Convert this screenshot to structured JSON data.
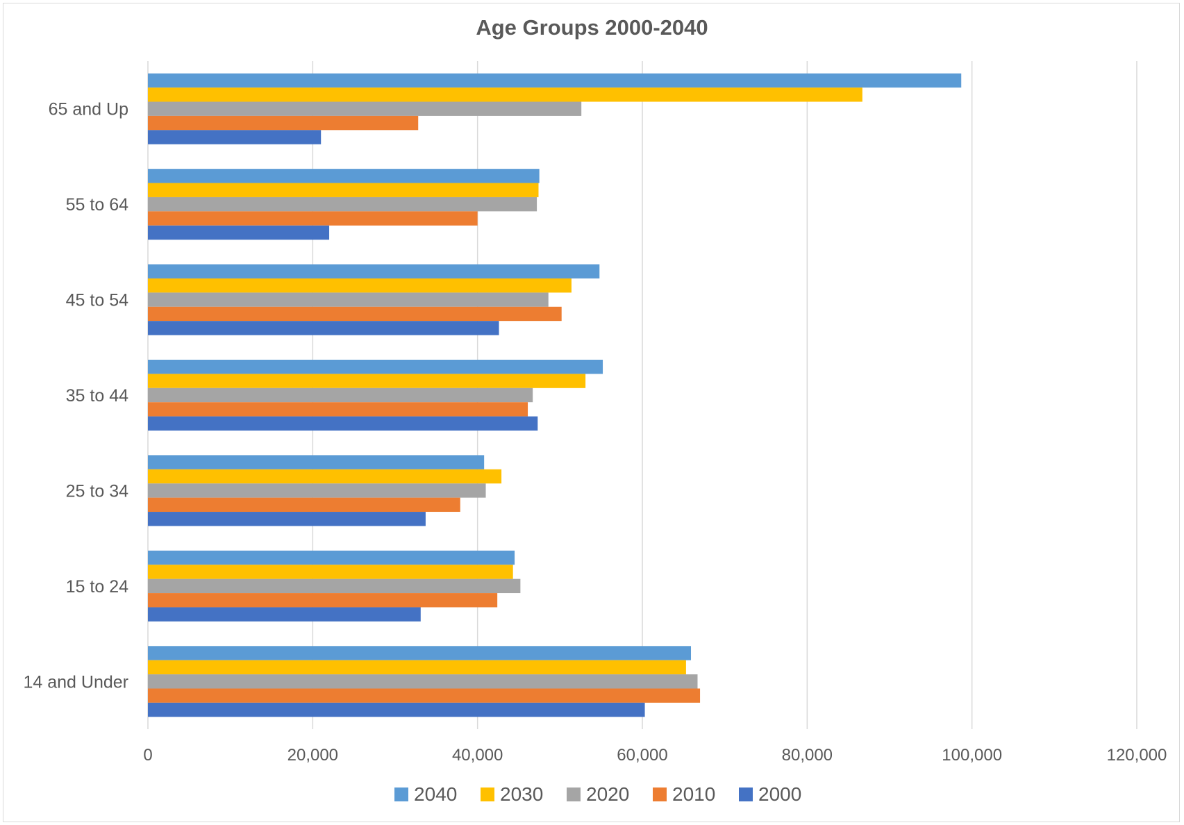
{
  "chart_data": {
    "type": "bar",
    "orientation": "horizontal",
    "title": "Age Groups 2000-2040",
    "xlabel": "",
    "ylabel": "",
    "xlim": [
      0,
      120000
    ],
    "x_ticks": [
      0,
      20000,
      40000,
      60000,
      80000,
      100000,
      120000
    ],
    "x_tick_labels": [
      "0",
      "20,000",
      "40,000",
      "60,000",
      "80,000",
      "100,000",
      "120,000"
    ],
    "grid": "vertical",
    "legend_position": "bottom",
    "categories": [
      "65 and Up",
      "55 to 64",
      "45 to 54",
      "35 to 44",
      "25 to 34",
      "15 to 24",
      "14 and Under"
    ],
    "series": [
      {
        "name": "2040",
        "color": "#5B9BD5",
        "values": [
          98700,
          47500,
          54800,
          55200,
          40800,
          44500,
          65900
        ]
      },
      {
        "name": "2030",
        "color": "#FFC000",
        "values": [
          86700,
          47400,
          51400,
          53100,
          42900,
          44300,
          65300
        ]
      },
      {
        "name": "2020",
        "color": "#A5A5A5",
        "values": [
          52600,
          47200,
          48600,
          46700,
          41000,
          45200,
          66700
        ]
      },
      {
        "name": "2010",
        "color": "#ED7D31",
        "values": [
          32800,
          40000,
          50200,
          46100,
          37900,
          42400,
          67000
        ]
      },
      {
        "name": "2000",
        "color": "#4472C4",
        "values": [
          21000,
          22000,
          42600,
          47300,
          33700,
          33100,
          60300
        ]
      }
    ],
    "gridline_color": "#d9d9d9"
  }
}
